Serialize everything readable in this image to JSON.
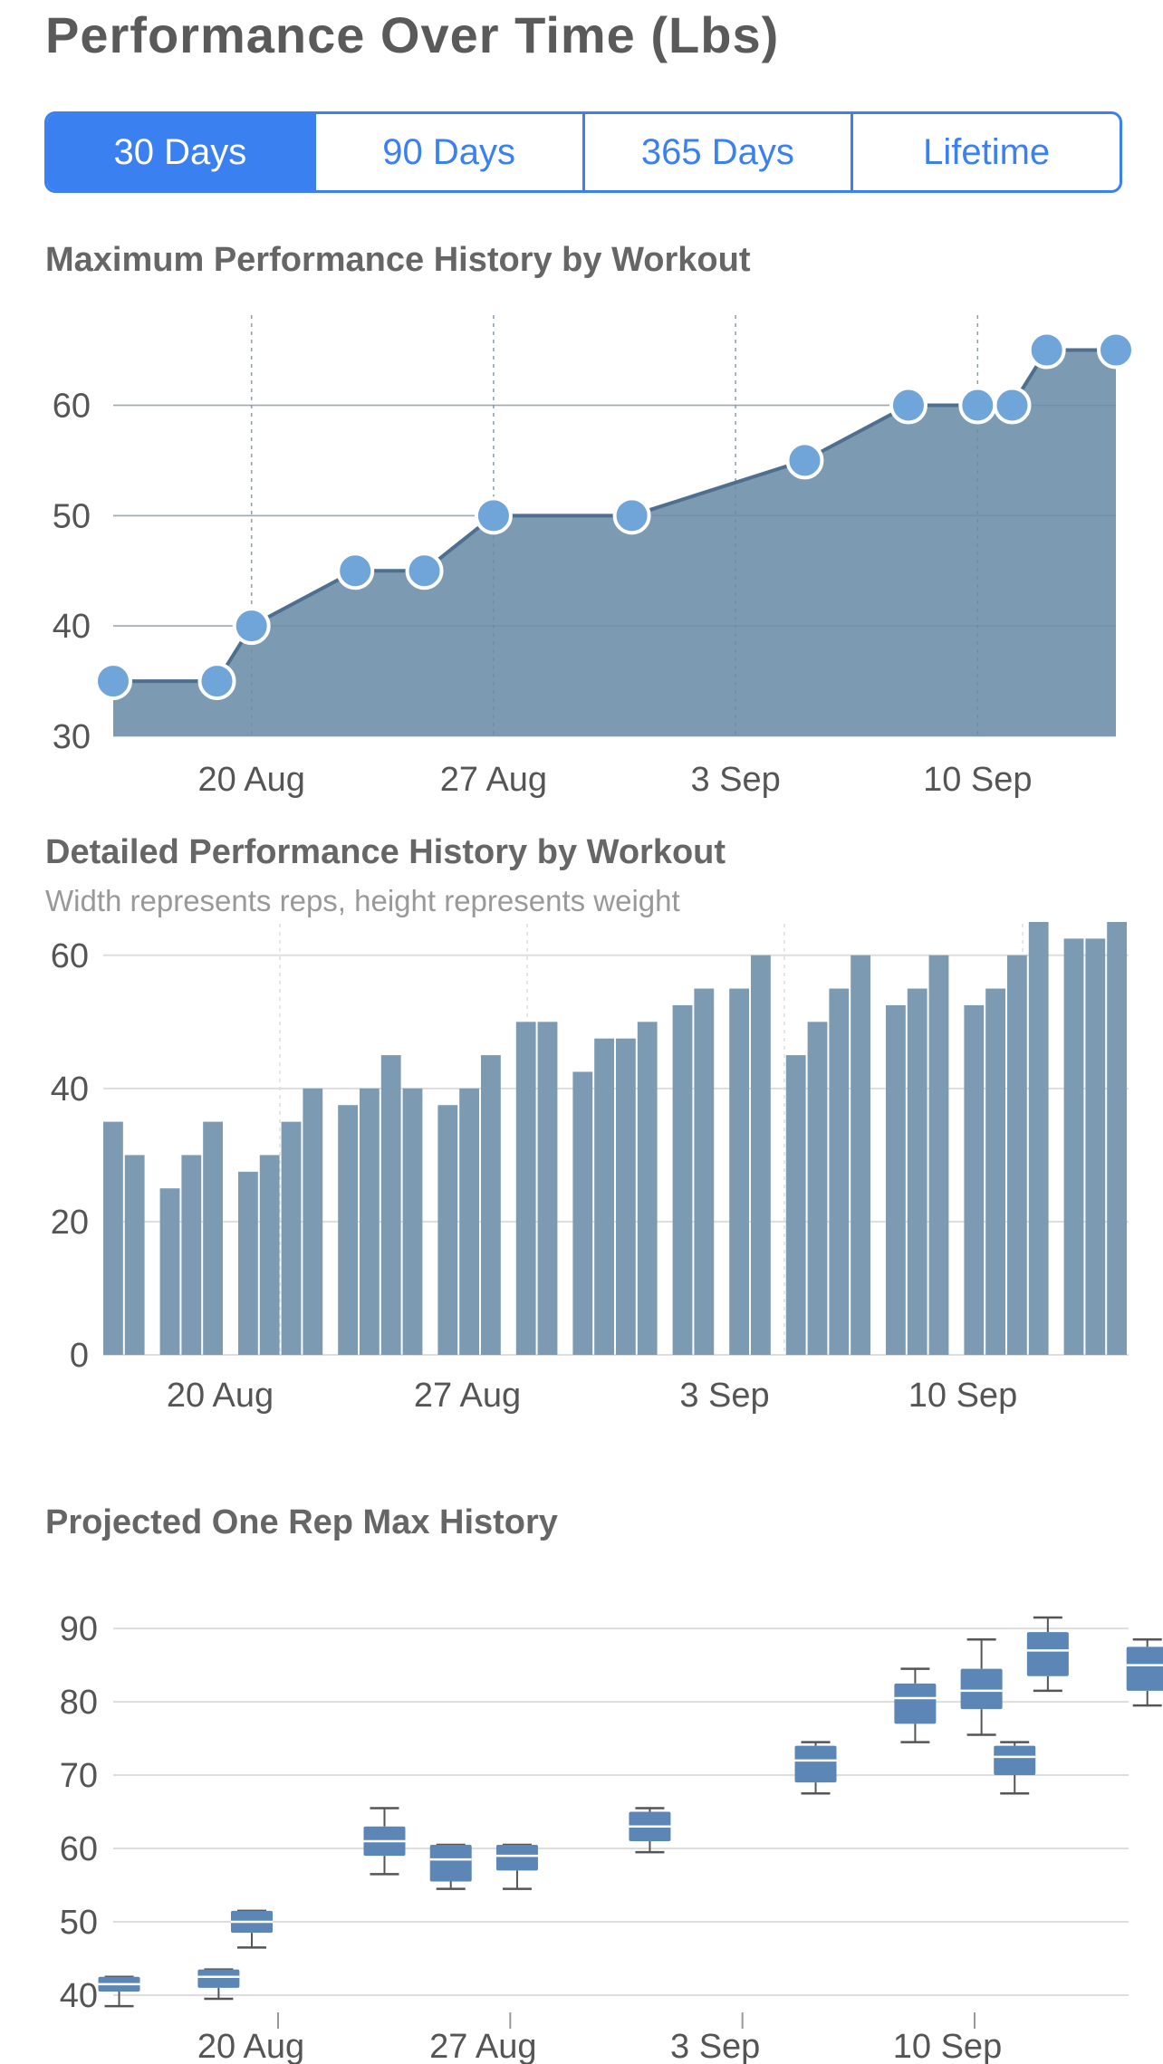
{
  "header": {
    "title": "Performance Over Time (Lbs)"
  },
  "range_tabs": [
    {
      "label": "30 Days",
      "active": true
    },
    {
      "label": "90 Days",
      "active": false
    },
    {
      "label": "365 Days",
      "active": false
    },
    {
      "label": "Lifetime",
      "active": false
    }
  ],
  "colors": {
    "accent": "#3b80f0",
    "area_fill": "#7d9ab3",
    "line": "#4f6f8f",
    "point": "#6fa5d8",
    "bar": "#7d9ab3",
    "box": "#5b86b5",
    "grid": "#dddddd"
  },
  "chart_data": [
    {
      "type": "area",
      "title": "Maximum Performance History by Workout",
      "x_unit": "date",
      "x_ticks": [
        "20 Aug",
        "27 Aug",
        "3 Sep",
        "10 Sep"
      ],
      "y_ticks": [
        30,
        40,
        50,
        60
      ],
      "ylim": [
        30,
        68
      ],
      "grid": true,
      "points": [
        {
          "x": "2023-08-16",
          "y": 35
        },
        {
          "x": "2023-08-19",
          "y": 35
        },
        {
          "x": "2023-08-20",
          "y": 40
        },
        {
          "x": "2023-08-23",
          "y": 45
        },
        {
          "x": "2023-08-25",
          "y": 45
        },
        {
          "x": "2023-08-27",
          "y": 50
        },
        {
          "x": "2023-08-31",
          "y": 50
        },
        {
          "x": "2023-09-05",
          "y": 55
        },
        {
          "x": "2023-09-08",
          "y": 60
        },
        {
          "x": "2023-09-10",
          "y": 60
        },
        {
          "x": "2023-09-11",
          "y": 60
        },
        {
          "x": "2023-09-12",
          "y": 65
        },
        {
          "x": "2023-09-14",
          "y": 65
        }
      ]
    },
    {
      "type": "bar",
      "title": "Detailed Performance History by Workout",
      "subtitle": "Width represents reps, height represents weight",
      "x_ticks": [
        "20 Aug",
        "27 Aug",
        "3 Sep",
        "10 Sep"
      ],
      "y_ticks": [
        0,
        20,
        40,
        60
      ],
      "ylim": [
        0,
        65
      ],
      "grid": true,
      "workouts": [
        {
          "date": "2023-08-16",
          "sets": [
            {
              "reps": 1,
              "weight": 35
            },
            {
              "reps": 1,
              "weight": 30
            }
          ]
        },
        {
          "date": "2023-08-17",
          "sets": [
            {
              "reps": 1,
              "weight": 25
            },
            {
              "reps": 1,
              "weight": 30
            },
            {
              "reps": 1,
              "weight": 35
            }
          ]
        },
        {
          "date": "2023-08-19",
          "sets": [
            {
              "reps": 1,
              "weight": 27.5
            },
            {
              "reps": 1,
              "weight": 30
            },
            {
              "reps": 1,
              "weight": 35
            },
            {
              "reps": 1,
              "weight": 40
            }
          ]
        },
        {
          "date": "2023-08-21",
          "sets": [
            {
              "reps": 1,
              "weight": 37.5
            },
            {
              "reps": 1,
              "weight": 40
            },
            {
              "reps": 1,
              "weight": 45
            },
            {
              "reps": 1,
              "weight": 40
            }
          ]
        },
        {
          "date": "2023-08-25",
          "sets": [
            {
              "reps": 1,
              "weight": 37.5
            },
            {
              "reps": 1,
              "weight": 40
            },
            {
              "reps": 1,
              "weight": 45
            }
          ]
        },
        {
          "date": "2023-08-27",
          "sets": [
            {
              "reps": 1,
              "weight": 50
            },
            {
              "reps": 1,
              "weight": 50
            }
          ]
        },
        {
          "date": "2023-08-29",
          "sets": [
            {
              "reps": 1,
              "weight": 42.5
            },
            {
              "reps": 1,
              "weight": 47.5
            },
            {
              "reps": 1,
              "weight": 47.5
            },
            {
              "reps": 1,
              "weight": 50
            }
          ]
        },
        {
          "date": "2023-09-01",
          "sets": [
            {
              "reps": 1,
              "weight": 52.5
            },
            {
              "reps": 1,
              "weight": 55
            }
          ]
        },
        {
          "date": "2023-09-02",
          "sets": [
            {
              "reps": 1,
              "weight": 55
            },
            {
              "reps": 1,
              "weight": 60
            }
          ]
        },
        {
          "date": "2023-09-04",
          "sets": [
            {
              "reps": 1,
              "weight": 45
            },
            {
              "reps": 1,
              "weight": 50
            },
            {
              "reps": 1,
              "weight": 55
            },
            {
              "reps": 1,
              "weight": 60
            }
          ]
        },
        {
          "date": "2023-09-07",
          "sets": [
            {
              "reps": 1,
              "weight": 52.5
            },
            {
              "reps": 1,
              "weight": 55
            },
            {
              "reps": 1,
              "weight": 60
            }
          ]
        },
        {
          "date": "2023-09-09",
          "sets": [
            {
              "reps": 1,
              "weight": 52.5
            },
            {
              "reps": 1,
              "weight": 55
            },
            {
              "reps": 1,
              "weight": 60
            },
            {
              "reps": 1,
              "weight": 65
            }
          ]
        },
        {
          "date": "2023-09-12",
          "sets": [
            {
              "reps": 1,
              "weight": 62.5
            },
            {
              "reps": 1,
              "weight": 62.5
            },
            {
              "reps": 1,
              "weight": 65
            }
          ]
        }
      ]
    },
    {
      "type": "box",
      "title": "Projected One Rep Max History",
      "x_ticks": [
        "20 Aug",
        "27 Aug",
        "3 Sep",
        "10 Sep"
      ],
      "y_ticks": [
        40,
        50,
        60,
        70,
        80,
        90
      ],
      "ylim": [
        40,
        91
      ],
      "grid": true,
      "boxes": [
        {
          "x": "2023-08-16",
          "min": 38.5,
          "q1": 40.5,
          "median": 41.5,
          "q3": 42.5,
          "max": 42.5
        },
        {
          "x": "2023-08-19",
          "min": 39.5,
          "q1": 41.0,
          "median": 42.5,
          "q3": 43.5,
          "max": 43.5
        },
        {
          "x": "2023-08-20",
          "min": 46.5,
          "q1": 48.5,
          "median": 50.0,
          "q3": 51.5,
          "max": 51.5
        },
        {
          "x": "2023-08-24",
          "min": 56.5,
          "q1": 59.0,
          "median": 61.0,
          "q3": 63.0,
          "max": 65.5
        },
        {
          "x": "2023-08-26",
          "min": 54.5,
          "q1": 55.5,
          "median": 58.5,
          "q3": 60.5,
          "max": 60.5
        },
        {
          "x": "2023-08-28",
          "min": 54.5,
          "q1": 57.0,
          "median": 59.0,
          "q3": 60.5,
          "max": 60.5
        },
        {
          "x": "2023-09-01",
          "min": 59.5,
          "q1": 61.0,
          "median": 63.0,
          "q3": 65.0,
          "max": 65.5
        },
        {
          "x": "2023-09-06",
          "min": 67.5,
          "q1": 69.0,
          "median": 72.0,
          "q3": 74.0,
          "max": 74.5
        },
        {
          "x": "2023-09-09",
          "min": 74.5,
          "q1": 77.0,
          "median": 80.5,
          "q3": 82.5,
          "max": 84.5
        },
        {
          "x": "2023-09-11",
          "min": 75.5,
          "q1": 79.0,
          "median": 81.5,
          "q3": 84.5,
          "max": 88.5
        },
        {
          "x": "2023-09-12",
          "min": 67.5,
          "q1": 70.0,
          "median": 72.5,
          "q3": 74.0,
          "max": 74.5
        },
        {
          "x": "2023-09-13",
          "min": 81.5,
          "q1": 83.5,
          "median": 87.0,
          "q3": 89.5,
          "max": 91.5
        },
        {
          "x": "2023-09-16",
          "min": 79.5,
          "q1": 81.5,
          "median": 85.0,
          "q3": 87.5,
          "max": 88.5
        }
      ]
    }
  ]
}
